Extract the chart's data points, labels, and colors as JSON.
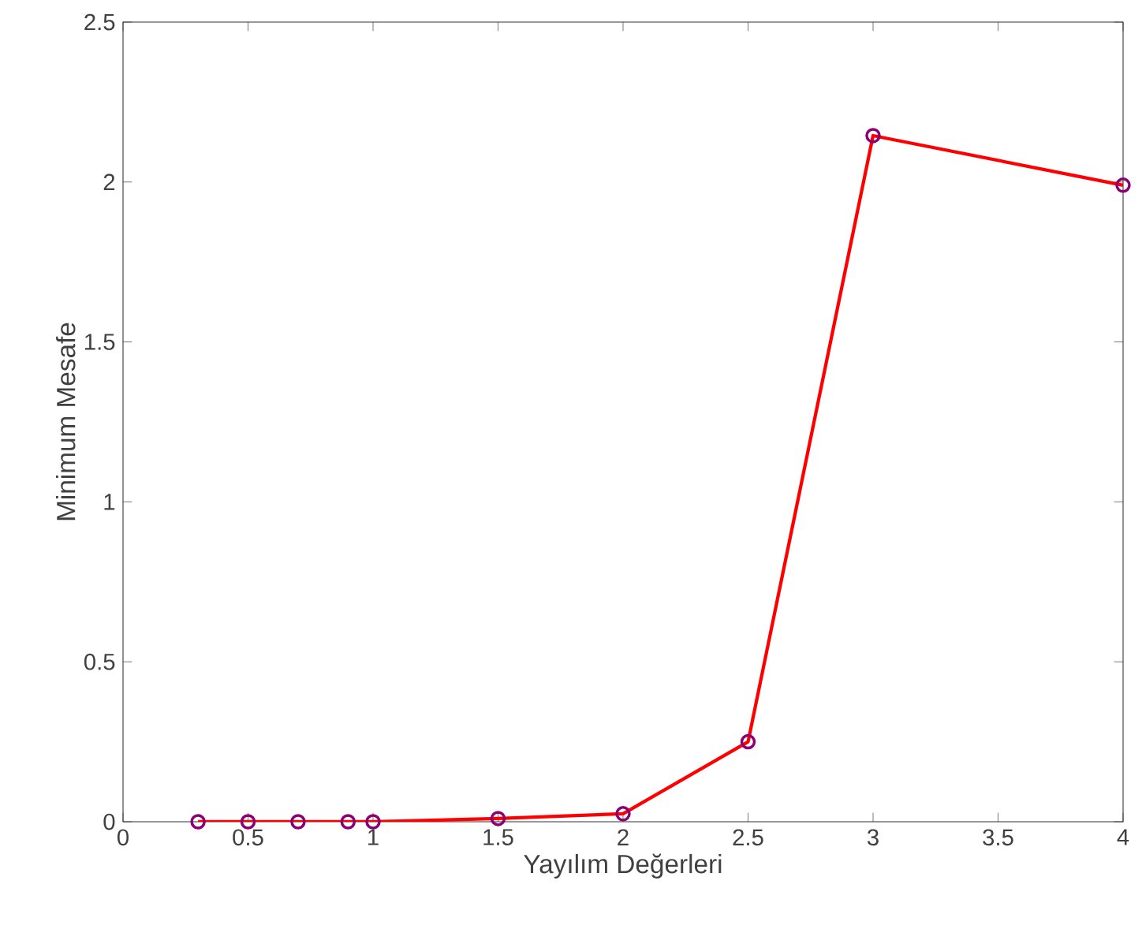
{
  "chart_data": {
    "type": "line",
    "xlabel": "Yayılım Değerleri",
    "ylabel": "Minimum Mesafe",
    "x": [
      0.3,
      0.5,
      0.7,
      0.9,
      1.0,
      1.5,
      2.0,
      2.5,
      3.0,
      4.0
    ],
    "series": [
      {
        "color": "#ff0000",
        "values": [
          0,
          0,
          0,
          0,
          0,
          0.01,
          0.025,
          0.25,
          2.145,
          1.99
        ]
      }
    ],
    "xlim": [
      0,
      4
    ],
    "ylim": [
      0,
      2.5
    ],
    "xticks": [
      0,
      0.5,
      1,
      1.5,
      2,
      2.5,
      3,
      3.5,
      4
    ],
    "yticks": [
      0,
      0.5,
      1,
      1.5,
      2,
      2.5
    ],
    "grid": false,
    "legend": false,
    "marker": "circle",
    "line_style": "solid"
  }
}
